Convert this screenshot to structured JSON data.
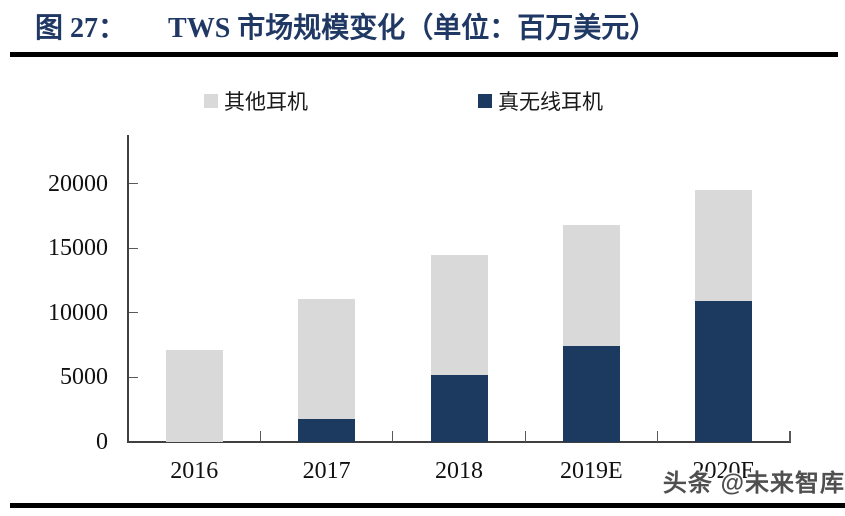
{
  "figure": {
    "title_prefix": "图 27：",
    "title_main": "TWS 市场规模变化（单位：百万美元）",
    "watermark": "头条 @未来智库"
  },
  "colors": {
    "title": "#1f3864",
    "tws_bar": "#1c3a60",
    "other_bar": "#d9d9d9",
    "axis": "#404040",
    "tick": "#595959",
    "rule": "#000000",
    "watermark": "#4f4f4f"
  },
  "chart_data": {
    "type": "bar",
    "stacked": true,
    "title": "TWS 市场规模变化",
    "unit": "百万美元",
    "categories": [
      "2016",
      "2017",
      "2018",
      "2019E",
      "2020E"
    ],
    "series": [
      {
        "name": "真无线耳机",
        "color": "#1c3a60",
        "values": [
          0,
          1800,
          5200,
          7400,
          10900
        ]
      },
      {
        "name": "其他耳机",
        "color": "#d9d9d9",
        "values": [
          7100,
          9300,
          9300,
          9400,
          8600
        ]
      }
    ],
    "totals": [
      7100,
      11100,
      14500,
      16800,
      19500
    ],
    "xlabel": "",
    "ylabel": "",
    "ylim": [
      0,
      20000
    ],
    "yticks": [
      0,
      5000,
      10000,
      15000,
      20000
    ],
    "grid": false,
    "legend_position": "top",
    "legend": [
      {
        "label": "其他耳机",
        "color": "#d9d9d9"
      },
      {
        "label": "真无线耳机",
        "color": "#1c3a60"
      }
    ]
  }
}
